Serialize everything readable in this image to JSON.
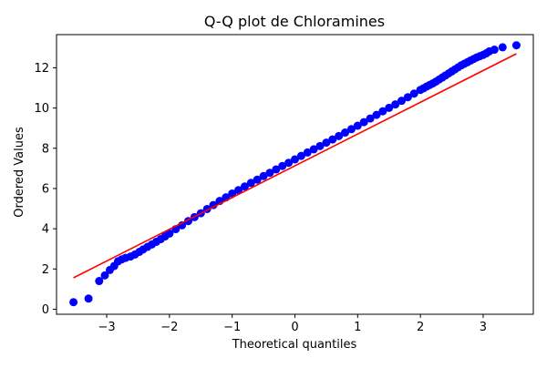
{
  "chart_data": {
    "type": "scatter",
    "title": "Q-Q plot de Chloramines",
    "xlabel": "Theoretical quantiles",
    "ylabel": "Ordered Values",
    "xlim": [
      -3.8,
      3.8
    ],
    "ylim": [
      -0.25,
      13.65
    ],
    "x_ticks": [
      -3,
      -2,
      -1,
      0,
      1,
      2,
      3
    ],
    "y_ticks": [
      0,
      2,
      4,
      6,
      8,
      10,
      12
    ],
    "grid": false,
    "legend": "none",
    "colors": {
      "points": "#0000ff",
      "fit_line": "#ff0000",
      "axes": "#000000"
    },
    "fit_line": {
      "x": [
        -3.53,
        3.53
      ],
      "y": [
        1.56,
        12.7
      ]
    },
    "points": {
      "x": [
        -3.53,
        -3.29,
        -3.12,
        -3.03,
        -2.95,
        -2.88,
        -2.82,
        -2.76,
        -2.7,
        -2.62,
        -2.55,
        -2.48,
        -2.42,
        -2.35,
        -2.28,
        -2.21,
        -2.14,
        -2.07,
        -2.0,
        -1.9,
        -1.8,
        -1.7,
        -1.6,
        -1.5,
        -1.4,
        -1.3,
        -1.2,
        -1.1,
        -1.0,
        -0.9,
        -0.8,
        -0.7,
        -0.6,
        -0.5,
        -0.4,
        -0.3,
        -0.2,
        -0.1,
        0.0,
        0.1,
        0.2,
        0.3,
        0.4,
        0.5,
        0.6,
        0.7,
        0.8,
        0.9,
        1.0,
        1.1,
        1.2,
        1.3,
        1.4,
        1.5,
        1.6,
        1.7,
        1.8,
        1.9,
        2.0,
        2.05,
        2.1,
        2.15,
        2.2,
        2.25,
        2.3,
        2.35,
        2.4,
        2.45,
        2.5,
        2.55,
        2.6,
        2.65,
        2.7,
        2.75,
        2.8,
        2.85,
        2.9,
        2.95,
        3.0,
        3.05,
        3.1,
        3.18,
        3.31,
        3.53
      ],
      "y": [
        0.35,
        0.53,
        1.4,
        1.68,
        1.95,
        2.15,
        2.38,
        2.48,
        2.55,
        2.62,
        2.72,
        2.85,
        2.97,
        3.1,
        3.22,
        3.35,
        3.48,
        3.62,
        3.76,
        3.98,
        4.17,
        4.38,
        4.58,
        4.77,
        4.98,
        5.18,
        5.38,
        5.56,
        5.75,
        5.92,
        6.1,
        6.28,
        6.44,
        6.62,
        6.78,
        6.95,
        7.12,
        7.28,
        7.45,
        7.62,
        7.79,
        7.95,
        8.11,
        8.28,
        8.44,
        8.61,
        8.78,
        8.95,
        9.12,
        9.3,
        9.48,
        9.66,
        9.84,
        10.01,
        10.18,
        10.36,
        10.54,
        10.72,
        10.9,
        10.98,
        11.07,
        11.15,
        11.23,
        11.32,
        11.42,
        11.52,
        11.62,
        11.72,
        11.82,
        11.92,
        12.02,
        12.12,
        12.2,
        12.28,
        12.36,
        12.44,
        12.52,
        12.58,
        12.64,
        12.72,
        12.82,
        12.9,
        13.02,
        13.12
      ]
    }
  }
}
